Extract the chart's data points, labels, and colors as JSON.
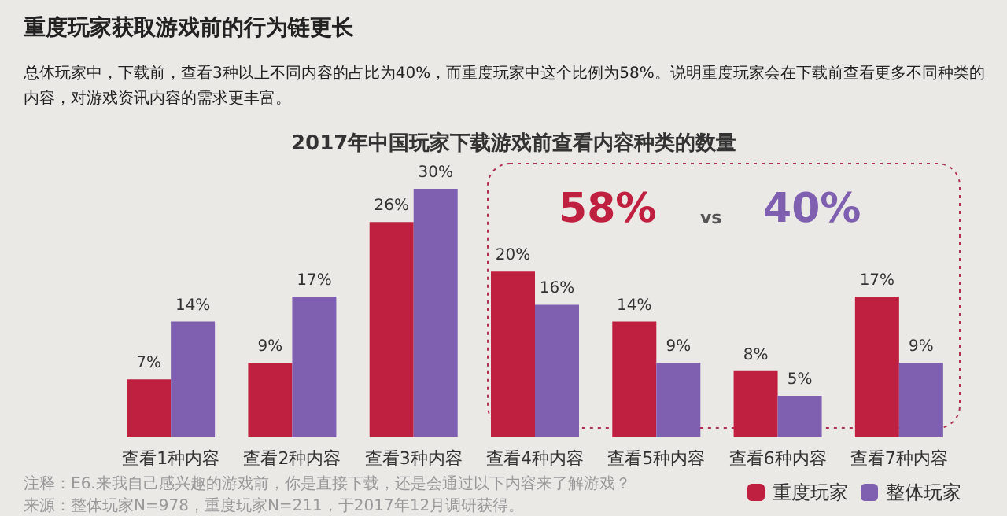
{
  "chart_data": {
    "type": "bar",
    "title": "2017年中国玩家下载游戏前查看内容种类的数量",
    "categories": [
      "查看1种内容",
      "查看2种内容",
      "查看3种内容",
      "查看4种内容",
      "查看5种内容",
      "查看6种内容",
      "查看7种内容"
    ],
    "series": [
      {
        "name": "重度玩家",
        "color": "#c0203f",
        "values": [
          7,
          9,
          26,
          20,
          14,
          8,
          17
        ],
        "value_labels": [
          "7%",
          "9%",
          "26%",
          "20%",
          "14%",
          "8%",
          "17%"
        ]
      },
      {
        "name": "整体玩家",
        "color": "#7e5fb0",
        "values": [
          14,
          17,
          30,
          16,
          9,
          5,
          9
        ],
        "value_labels": [
          "14%",
          "17%",
          "30%",
          "16%",
          "9%",
          "5%",
          "9%"
        ]
      }
    ],
    "annotations": [
      "重度玩家获取游戏前的行为链更长",
      "总体玩家中，下载前，查看3种以上不同内容的占比为40%，而重度玩家中这个比例为58%。说明重度玩家会在下载前查看更多不同种类的内容，对游戏资讯内容的需求更丰富。",
      "58%",
      "vs",
      "40%",
      "注释：E6.来我自己感兴趣的游戏前，你是直接下载，还是会通过以下内容来了解游戏？",
      "来源：整体玩家N=978，重度玩家N=211，于2017年12月调研获得。"
    ],
    "legend": "bottom",
    "grid": false
  }
}
